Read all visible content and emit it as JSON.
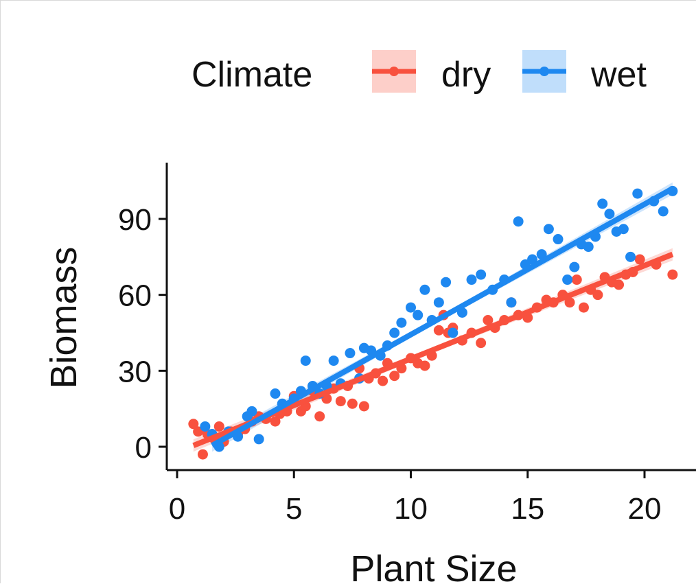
{
  "chart_data": {
    "type": "scatter",
    "title": "",
    "xlabel": "Plant Size",
    "ylabel": "Biomass",
    "xlim": [
      -0.8,
      22
    ],
    "ylim": [
      -9,
      112
    ],
    "xticks": [
      0,
      5,
      10,
      15,
      20
    ],
    "yticks": [
      0,
      30,
      60,
      90
    ],
    "grid": false,
    "legend": {
      "title": "Climate",
      "placement": "top"
    },
    "series": [
      {
        "name": "dry",
        "color": "#f8513e",
        "fit": {
          "x": [
            0.7,
            21.2
          ],
          "y": [
            0.5,
            76
          ]
        },
        "x": [
          0.7,
          0.9,
          1.1,
          1.3,
          1.6,
          1.8,
          2.0,
          2.3,
          2.6,
          2.9,
          3.2,
          3.5,
          3.8,
          4.2,
          4.4,
          4.7,
          5.0,
          5.3,
          5.5,
          5.8,
          6.1,
          6.4,
          6.7,
          7.0,
          7.3,
          7.5,
          7.8,
          8.0,
          8.2,
          8.5,
          8.8,
          9.0,
          9.3,
          9.6,
          10.0,
          10.3,
          10.6,
          10.9,
          11.2,
          11.4,
          11.6,
          11.8,
          12.2,
          12.6,
          13.0,
          13.3,
          13.6,
          14.0,
          14.3,
          14.6,
          15.0,
          15.4,
          15.8,
          16.1,
          16.5,
          16.8,
          17.1,
          17.4,
          17.7,
          18.0,
          18.3,
          18.6,
          18.9,
          19.2,
          19.5,
          19.8,
          20.5,
          21.2
        ],
        "y": [
          9,
          6,
          -3,
          5,
          3,
          8,
          2,
          6,
          5,
          7,
          10,
          12,
          11,
          10,
          13,
          14,
          20,
          14,
          16,
          22,
          12,
          19,
          23,
          18,
          24,
          17,
          31,
          16,
          27,
          29,
          26,
          33,
          28,
          31,
          35,
          33,
          32,
          36,
          46,
          52,
          45,
          47,
          42,
          45,
          41,
          50,
          47,
          50,
          57,
          52,
          51,
          55,
          58,
          57,
          60,
          57,
          66,
          55,
          62,
          60,
          67,
          65,
          64,
          68,
          69,
          74,
          72,
          68
        ]
      },
      {
        "name": "wet",
        "color": "#1e88f0",
        "fit": {
          "x": [
            1.5,
            21.2
          ],
          "y": [
            0.5,
            102
          ]
        },
        "x": [
          1.2,
          1.5,
          1.8,
          2.2,
          2.6,
          3.0,
          3.2,
          3.5,
          4.2,
          4.5,
          5.0,
          5.3,
          5.5,
          5.8,
          6.1,
          6.4,
          6.7,
          7.0,
          7.4,
          7.8,
          8.0,
          8.3,
          8.7,
          9.0,
          9.3,
          9.6,
          10.0,
          10.3,
          10.6,
          10.9,
          11.2,
          11.5,
          11.8,
          12.2,
          12.6,
          13.0,
          13.5,
          14.0,
          14.3,
          14.6,
          14.9,
          15.2,
          15.6,
          15.9,
          16.3,
          16.7,
          17.0,
          17.3,
          17.6,
          17.9,
          18.2,
          18.5,
          18.8,
          19.1,
          19.4,
          19.7,
          20.4,
          20.8,
          21.2
        ],
        "y": [
          8,
          5,
          0,
          6,
          4,
          12,
          14,
          3,
          21,
          17,
          19,
          22,
          34,
          24,
          21,
          24,
          34,
          25,
          37,
          27,
          39,
          38,
          36,
          40,
          45,
          49,
          55,
          52,
          62,
          50,
          57,
          65,
          45,
          53,
          66,
          68,
          62,
          66,
          57,
          89,
          72,
          74,
          76,
          86,
          82,
          66,
          71,
          80,
          79,
          83,
          96,
          92,
          85,
          86,
          75,
          100,
          97,
          93,
          101
        ]
      }
    ]
  }
}
